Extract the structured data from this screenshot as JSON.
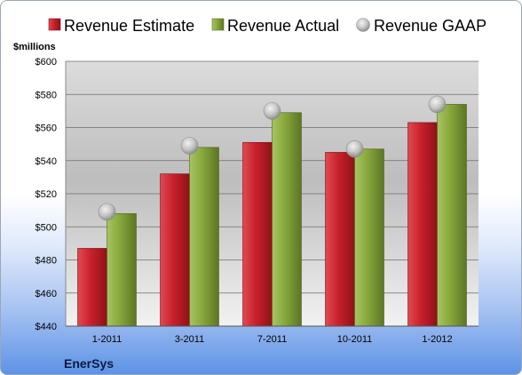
{
  "chart_data": {
    "type": "bar",
    "company": "EnerSys",
    "ylabel": "$millions",
    "ylim": [
      440,
      600
    ],
    "yticks": [
      440,
      460,
      480,
      500,
      520,
      540,
      560,
      580,
      600
    ],
    "ytick_labels": [
      "$440",
      "$460",
      "$480",
      "$500",
      "$520",
      "$540",
      "$560",
      "$580",
      "$600"
    ],
    "categories": [
      "1-2011",
      "3-2011",
      "7-2011",
      "10-2011",
      "1-2012"
    ],
    "series": [
      {
        "name": "Revenue Estimate",
        "kind": "bar",
        "color": "#c8202b",
        "values": [
          487,
          532,
          551,
          545,
          563
        ]
      },
      {
        "name": "Revenue Actual",
        "kind": "bar",
        "color": "#86a63b",
        "values": [
          508,
          548,
          569,
          547,
          574
        ]
      },
      {
        "name": "Revenue GAAP",
        "kind": "marker",
        "color": "#b8b8b8",
        "values": [
          509,
          549,
          570,
          547,
          574
        ]
      }
    ],
    "grid": true,
    "legend": "top"
  }
}
